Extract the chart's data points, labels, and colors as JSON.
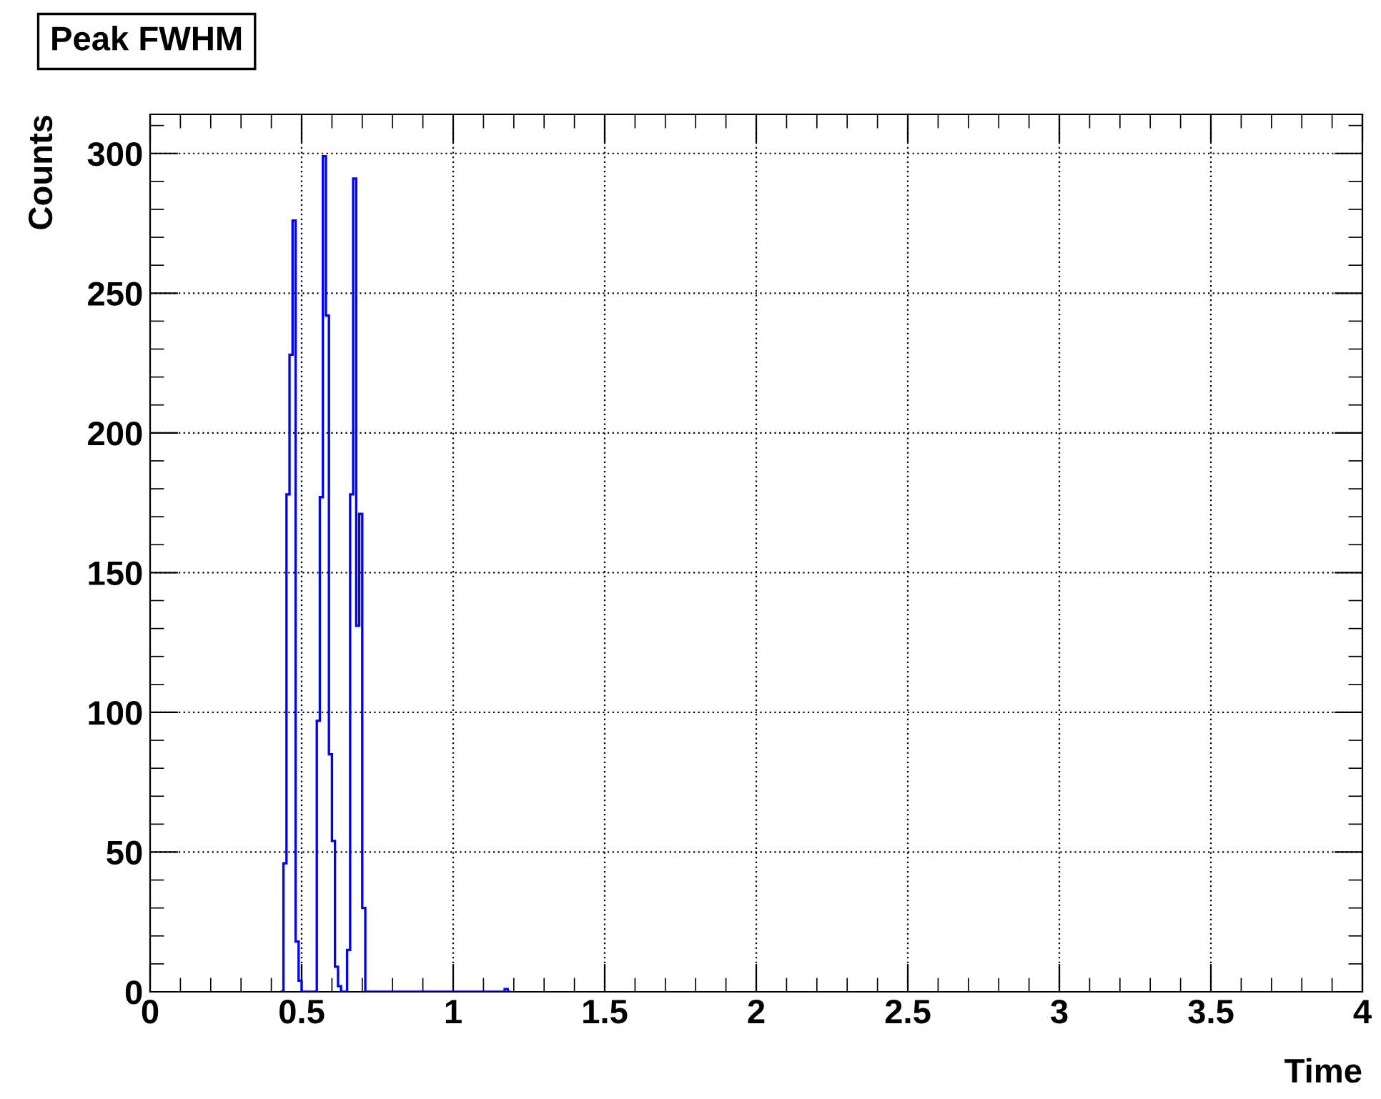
{
  "chart_data": {
    "type": "histogram",
    "title": "Peak FWHM",
    "xlabel": "Time",
    "ylabel": "Counts",
    "bins": [
      0.43,
      0.44,
      0.45,
      0.46,
      0.47,
      0.48,
      0.49,
      0.5,
      0.51,
      0.52,
      0.53,
      0.54,
      0.55,
      0.56,
      0.57,
      0.58,
      0.59,
      0.6,
      0.61,
      0.62,
      0.63,
      0.64,
      0.65,
      0.66,
      0.67,
      0.68,
      0.69,
      0.7,
      0.71,
      0.72,
      0.73,
      0.74,
      0.75,
      0.76,
      0.77,
      0.78,
      0.79,
      0.8,
      0.81,
      0.82,
      0.83,
      0.84,
      0.85,
      0.86,
      0.87,
      0.88,
      0.89,
      0.9,
      0.91,
      0.92,
      0.93,
      0.94,
      0.95,
      0.96,
      0.97,
      0.98,
      0.99,
      1.0,
      1.01,
      1.02,
      1.03,
      1.04,
      1.05,
      1.06,
      1.07,
      1.08,
      1.09,
      1.1,
      1.11,
      1.12,
      1.13,
      1.14,
      1.15,
      1.16,
      1.17,
      1.18,
      1.19
    ],
    "values": [
      0,
      46,
      178,
      228,
      276,
      18,
      4,
      0,
      0,
      0,
      0,
      0,
      97,
      177,
      299,
      242,
      85,
      54,
      9,
      2,
      0,
      0,
      15,
      178,
      291,
      131,
      171,
      30,
      0,
      0,
      0,
      0,
      0,
      0,
      0,
      0,
      0,
      0,
      0,
      0,
      0,
      0,
      0,
      0,
      0,
      0,
      0,
      0,
      0,
      0,
      0,
      0,
      0,
      0,
      0,
      0,
      0,
      0,
      0,
      0,
      0,
      0,
      0,
      0,
      0,
      0,
      0,
      0,
      0,
      0,
      0,
      0,
      0,
      0,
      1,
      0
    ],
    "color": "#0000ff",
    "xlim": [
      0,
      4
    ],
    "xticks": [
      0,
      0.5,
      1,
      1.5,
      2,
      2.5,
      3,
      3.5,
      4
    ],
    "ylim": [
      0,
      314
    ],
    "yticks": [
      0,
      50,
      100,
      150,
      200,
      250,
      300
    ],
    "grid": true
  }
}
